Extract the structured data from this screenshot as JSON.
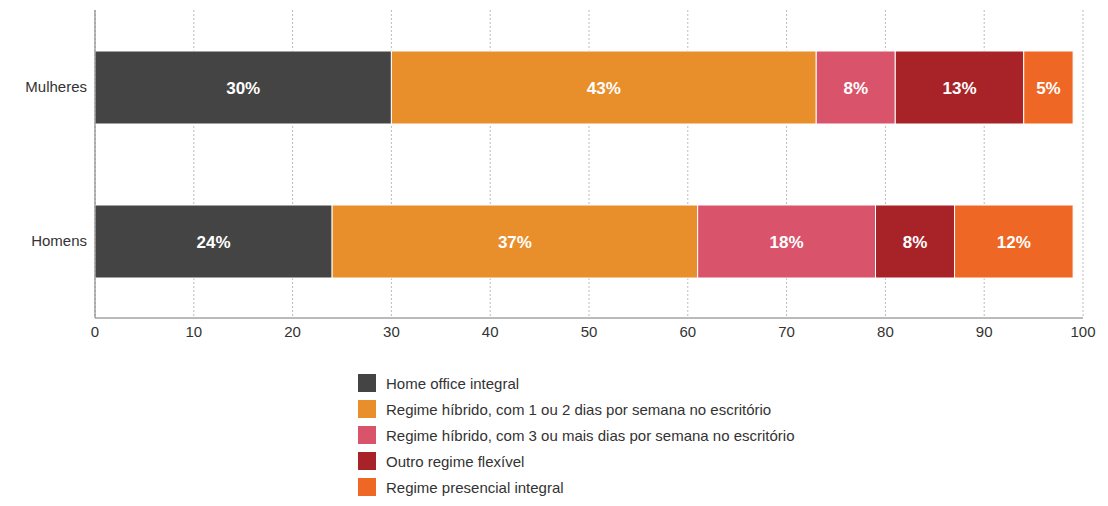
{
  "chart_data": {
    "type": "bar",
    "orientation": "horizontal",
    "stacked": true,
    "data_labels": true,
    "grid": true,
    "categories": [
      "Mulheres",
      "Homens"
    ],
    "xlim": [
      0,
      100
    ],
    "xticks": [
      0,
      10,
      20,
      30,
      40,
      50,
      60,
      70,
      80,
      90,
      100
    ],
    "series": [
      {
        "name": "Home office integral",
        "color": "#444444",
        "values": [
          30,
          24
        ],
        "value_labels": [
          "30%",
          "24%"
        ]
      },
      {
        "name": "Regime híbrido, com 1 ou 2 dias por semana no escritório",
        "color": "#E88E2A",
        "values": [
          43,
          37
        ],
        "value_labels": [
          "43%",
          "37%"
        ]
      },
      {
        "name": "Regime híbrido, com 3 ou mais dias por semana no escritório",
        "color": "#D9536B",
        "values": [
          8,
          18
        ],
        "value_labels": [
          "8%",
          "18%"
        ]
      },
      {
        "name": "Outro regime flexível",
        "color": "#A82328",
        "values": [
          13,
          8
        ],
        "value_labels": [
          "13%",
          "8%"
        ]
      },
      {
        "name": "Regime presencial integral",
        "color": "#EE6724",
        "values": [
          5,
          12
        ],
        "value_labels": [
          "5%",
          "12%"
        ]
      }
    ]
  }
}
